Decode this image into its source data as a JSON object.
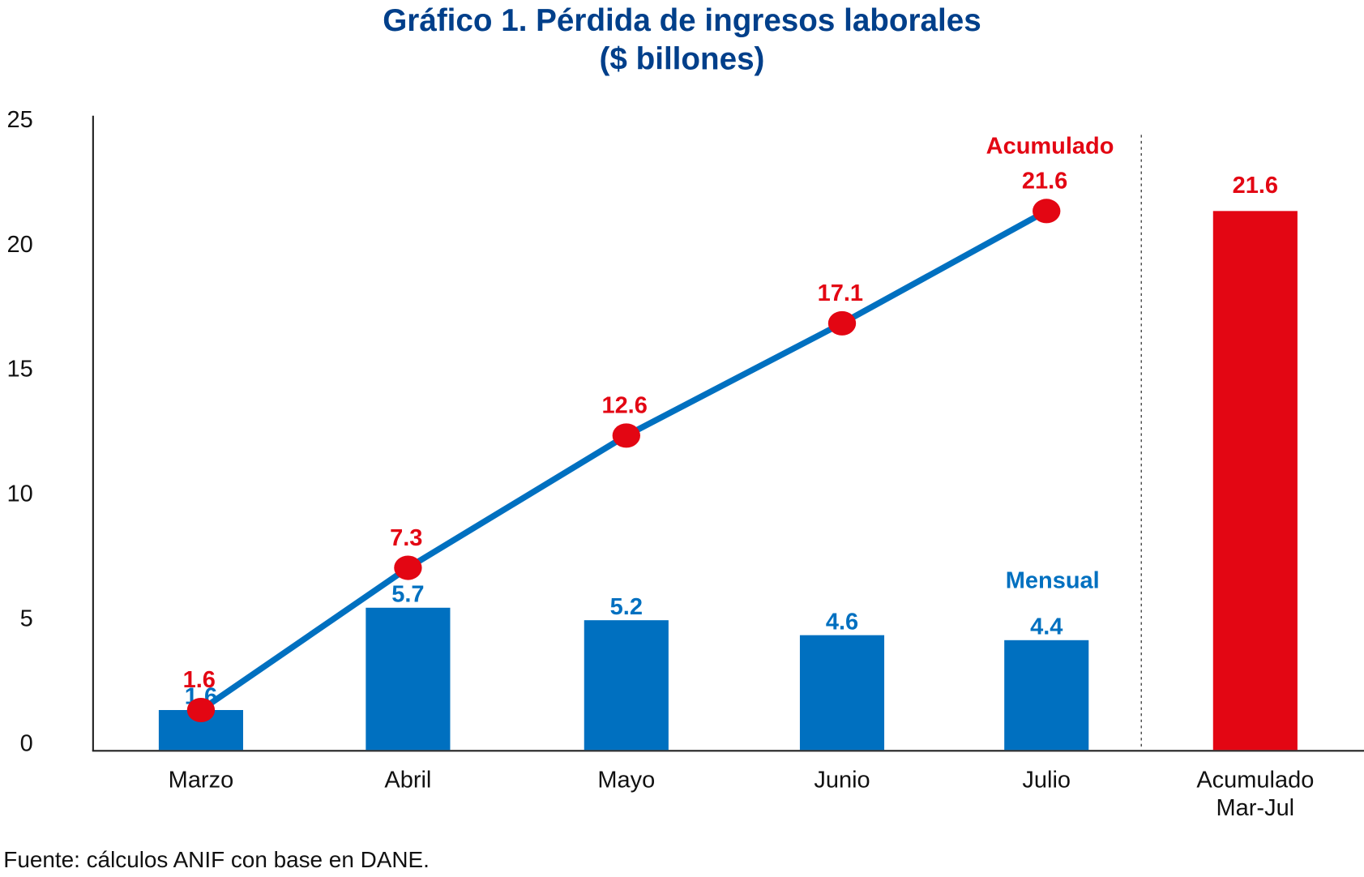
{
  "chart_data": {
    "type": "bar_line",
    "title": "Gráfico 1. Pérdida de ingresos laborales",
    "subtitle": "($ billones)",
    "categories": [
      "Marzo",
      "Abril",
      "Mayo",
      "Junio",
      "Julio",
      "Acumulado Mar-Jul"
    ],
    "series": [
      {
        "name": "Mensual",
        "type": "bar",
        "color": "#0070c0",
        "values": [
          1.6,
          5.7,
          5.2,
          4.6,
          4.4,
          null
        ]
      },
      {
        "name": "Acumulado",
        "type": "line",
        "color": "#0070c0",
        "marker_color": "#e30613",
        "label_color": "#e30613",
        "values": [
          1.6,
          7.3,
          12.6,
          17.1,
          21.6,
          null
        ]
      }
    ],
    "total": {
      "value": 21.6,
      "color": "#e30613"
    },
    "ylim": [
      0,
      25
    ],
    "yticks": [
      0,
      5,
      10,
      15,
      20,
      25
    ],
    "grid": false,
    "source": "Fuente: cálculos ANIF con base en DANE."
  }
}
